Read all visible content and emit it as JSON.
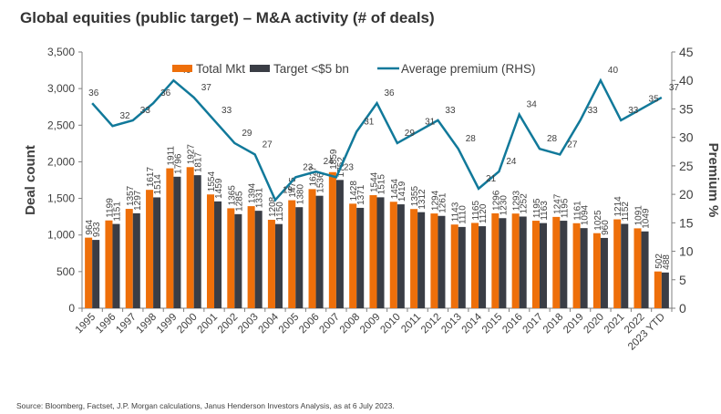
{
  "title": "Global equities (public target) – M&A activity (# of deals)",
  "source": "Source:   Bloomberg, Factset, J.P. Morgan calculations, Janus Henderson Investors Analysis, as at 6 July 2023.",
  "colors": {
    "total": "#EE6F0A",
    "target": "#3A3D45",
    "premium": "#11799A",
    "axis": "#7F7F7F"
  },
  "chart_data": {
    "type": "bar",
    "title": "Global equities (public target) – M&A activity (# of deals)",
    "xlabel": "",
    "ylabel": "Deal count",
    "y2label": "Premium %",
    "ylim": [
      0,
      3500
    ],
    "y2lim": [
      0,
      45
    ],
    "yticks": [
      "0",
      "500",
      "1,000",
      "1,500",
      "2,000",
      "2,500",
      "3,000",
      "3,500"
    ],
    "y2ticks": [
      "0",
      "5",
      "10",
      "15",
      "20",
      "25",
      "30",
      "35",
      "40",
      "45"
    ],
    "legend_position": "top",
    "grid": false,
    "categories": [
      "1995",
      "1996",
      "1997",
      "1998",
      "1999",
      "2000",
      "2001",
      "2002",
      "2003",
      "2004",
      "2005",
      "2006",
      "2007",
      "2008",
      "2009",
      "2010",
      "2011",
      "2012",
      "2013",
      "2014",
      "2015",
      "2016",
      "2017",
      "2018",
      "2019",
      "2020",
      "2021",
      "2022",
      "2023 YTD"
    ],
    "series": [
      {
        "name": "Total Mkt",
        "type": "bar",
        "axis": "left",
        "values": [
          964,
          1199,
          1357,
          1617,
          1911,
          1927,
          1554,
          1365,
          1394,
          1208,
          1475,
          1627,
          1859,
          1428,
          1544,
          1454,
          1355,
          1294,
          1143,
          1165,
          1296,
          1293,
          1195,
          1247,
          1161,
          1025,
          1214,
          1091,
          502
        ]
      },
      {
        "name": "Target <$5 bn",
        "type": "bar",
        "axis": "left",
        "values": [
          933,
          1151,
          1297,
          1514,
          1796,
          1817,
          1459,
          1285,
          1331,
          1150,
          1380,
          1536,
          1752,
          1371,
          1515,
          1419,
          1312,
          1261,
          1110,
          1120,
          1230,
          1252,
          1163,
          1195,
          1094,
          960,
          1152,
          1049,
          488
        ]
      },
      {
        "name": "Average premium (RHS)",
        "type": "line",
        "axis": "right",
        "values": [
          36,
          32,
          33,
          36,
          40,
          37,
          33,
          29,
          27,
          19,
          23,
          24,
          23,
          31,
          36,
          29,
          31,
          33,
          28,
          21,
          24,
          34,
          28,
          27,
          33,
          40,
          33,
          35,
          37
        ]
      }
    ]
  }
}
